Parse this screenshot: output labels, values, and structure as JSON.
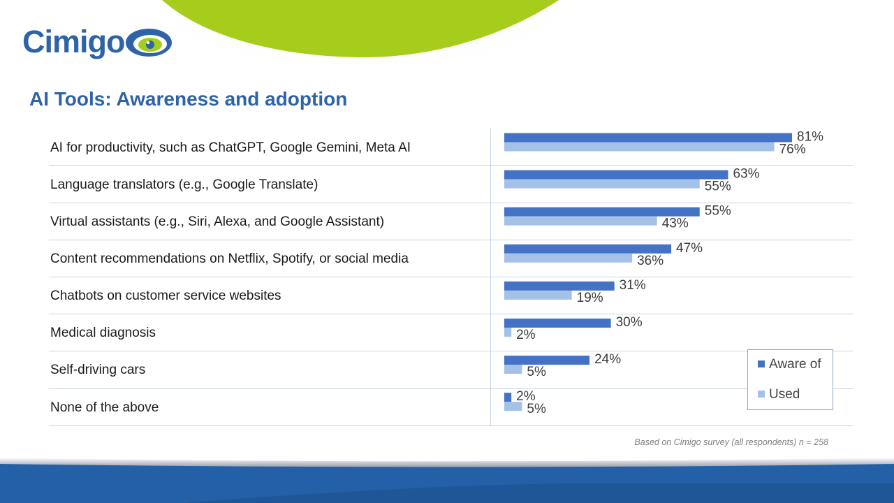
{
  "brand": {
    "name": "Cimigo"
  },
  "page": {
    "title": "AI Tools: Awareness and adoption"
  },
  "footnote": "Based on Cimigo survey (all respondents) n = 258",
  "colors": {
    "aware": "#4472c4",
    "used": "#a4c2e8",
    "title": "#2e63a8",
    "green": "#a6cd1b",
    "footer": "#2360a7"
  },
  "chart_data": {
    "type": "bar",
    "orientation": "horizontal",
    "categories": [
      "AI for productivity, such as ChatGPT, Google Gemini, Meta AI",
      "Language translators (e.g., Google Translate)",
      "Virtual assistants (e.g., Siri, Alexa, and Google Assistant)",
      "Content recommendations on Netflix, Spotify, or social media",
      "Chatbots on customer service websites",
      "Medical diagnosis",
      "Self-driving cars",
      "None of the above"
    ],
    "series": [
      {
        "name": "Aware of",
        "values": [
          81,
          63,
          55,
          47,
          31,
          30,
          24,
          2
        ],
        "labels": [
          "81%",
          "63%",
          "55%",
          "47%",
          "31%",
          "30%",
          "24%",
          "2%"
        ]
      },
      {
        "name": "Used",
        "values": [
          76,
          55,
          43,
          36,
          19,
          2,
          5,
          5
        ],
        "labels": [
          "76%",
          "55%",
          "43%",
          "36%",
          "19%",
          "2%",
          "5%",
          "5%"
        ]
      }
    ],
    "value_unit": "%",
    "xlim": [
      0,
      100
    ],
    "legend": "bottom-right",
    "grid": false
  }
}
